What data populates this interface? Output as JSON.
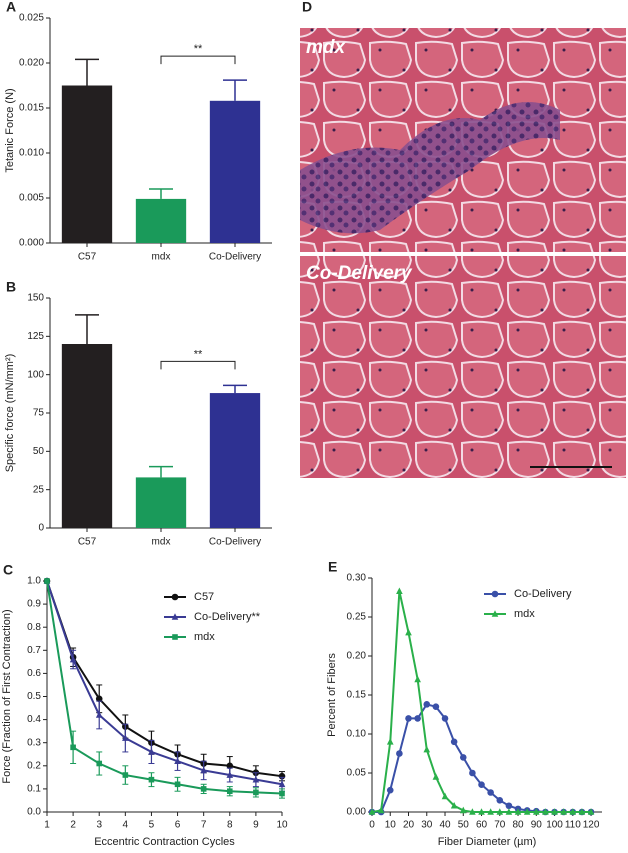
{
  "chart_data": [
    {
      "type": "bar",
      "panel": "A",
      "ylabel": "Tetanic Force (N)",
      "categories": [
        "C57",
        "mdx",
        "Co-Delivery"
      ],
      "values": [
        0.0175,
        0.0049,
        0.0158
      ],
      "errors": [
        0.0029,
        0.0011,
        0.0023
      ],
      "colors": [
        "#231f20",
        "#1a9a5a",
        "#2e3192"
      ],
      "annotation": "**",
      "ylim": [
        0,
        0.025
      ],
      "yticks": [
        {
          "value": 0,
          "label": "0.000"
        },
        0.005,
        {
          "value": 0.01,
          "label": "0.010"
        },
        0.015,
        {
          "value": 0.02,
          "label": "0.020"
        },
        0.025
      ]
    },
    {
      "type": "bar",
      "panel": "B",
      "ylabel": "Specific force (mN/mm²)",
      "categories": [
        "C57",
        "mdx",
        "Co-Delivery"
      ],
      "values": [
        120,
        33,
        88
      ],
      "errors": [
        19,
        7,
        5
      ],
      "colors": [
        "#231f20",
        "#1a9a5a",
        "#2e3192"
      ],
      "annotation": "**",
      "ylim": [
        0,
        150
      ],
      "yticks": [
        0,
        25,
        50,
        75,
        100,
        125,
        150
      ]
    },
    {
      "type": "line",
      "panel": "C",
      "xlabel": "Eccentric Contraction Cycles",
      "ylabel": "Force (Fraction of First Contraction)",
      "x": [
        1,
        2,
        3,
        4,
        5,
        6,
        7,
        8,
        9,
        10
      ],
      "series": [
        {
          "name": "C57",
          "color": "#111111",
          "marker": "circle",
          "values": [
            1.0,
            0.67,
            0.49,
            0.37,
            0.3,
            0.25,
            0.21,
            0.2,
            0.17,
            0.155
          ],
          "errors": [
            0,
            0.04,
            0.06,
            0.05,
            0.05,
            0.04,
            0.04,
            0.04,
            0.03,
            0.02
          ]
        },
        {
          "name": "Co-Delivery**",
          "color": "#3a3b94",
          "marker": "triangle",
          "values": [
            1.0,
            0.66,
            0.42,
            0.32,
            0.26,
            0.22,
            0.18,
            0.16,
            0.14,
            0.12
          ],
          "errors": [
            0,
            0.04,
            0.06,
            0.06,
            0.05,
            0.04,
            0.04,
            0.03,
            0.03,
            0.03
          ]
        },
        {
          "name": "mdx",
          "color": "#1a9a5a",
          "marker": "square",
          "values": [
            1.0,
            0.28,
            0.21,
            0.16,
            0.14,
            0.12,
            0.1,
            0.09,
            0.085,
            0.08
          ],
          "errors": [
            0,
            0.07,
            0.05,
            0.04,
            0.03,
            0.03,
            0.02,
            0.02,
            0.02,
            0.02
          ]
        }
      ],
      "legend": "upper right",
      "xlim": [
        1,
        10
      ],
      "xticks": [
        1,
        2,
        3,
        4,
        5,
        6,
        7,
        8,
        9,
        10
      ],
      "ylim": [
        0,
        1
      ],
      "yticks": [
        {
          "value": 0,
          "label": "0.0"
        },
        0.1,
        0.2,
        0.3,
        0.4,
        0.5,
        0.6,
        0.7,
        0.8,
        0.9,
        {
          "value": 1,
          "label": "1.0"
        }
      ]
    },
    {
      "type": "line",
      "panel": "E",
      "xlabel": "Fiber Diameter (µm)",
      "ylabel": "Percent of Fibers",
      "x": [
        0,
        5,
        10,
        15,
        20,
        25,
        30,
        35,
        40,
        45,
        50,
        55,
        60,
        65,
        70,
        75,
        80,
        85,
        90,
        95,
        100,
        105,
        110,
        115,
        120
      ],
      "series": [
        {
          "name": "Co-Delivery",
          "color": "#3a50a8",
          "marker": "circle",
          "values": [
            0,
            0,
            0.028,
            0.075,
            0.12,
            0.12,
            0.138,
            0.135,
            0.12,
            0.09,
            0.07,
            0.05,
            0.035,
            0.025,
            0.015,
            0.008,
            0.004,
            0.002,
            0.001,
            0,
            0,
            0,
            0,
            0,
            0
          ]
        },
        {
          "name": "mdx",
          "color": "#2ab04a",
          "marker": "triangle",
          "values": [
            0,
            0.002,
            0.09,
            0.283,
            0.23,
            0.17,
            0.08,
            0.045,
            0.02,
            0.008,
            0.002,
            0,
            0,
            0,
            0,
            0,
            0,
            0,
            0,
            0,
            0,
            0,
            0,
            0,
            0
          ]
        }
      ],
      "legend": "upper right",
      "xlim": [
        0,
        126
      ],
      "xticks": [
        0,
        10,
        20,
        30,
        40,
        50,
        60,
        70,
        80,
        90,
        100,
        110,
        120
      ],
      "ylim": [
        0,
        0.3
      ],
      "yticks": [
        {
          "value": 0,
          "label": "0.00"
        },
        0.05,
        {
          "value": 0.1,
          "label": "0.10"
        },
        0.15,
        {
          "value": 0.2,
          "label": "0.20"
        },
        0.25,
        {
          "value": 0.3,
          "label": "0.30"
        }
      ]
    }
  ],
  "micrographs": {
    "panel": "D",
    "labels": [
      "mdx",
      "Co-Delivery"
    ]
  }
}
